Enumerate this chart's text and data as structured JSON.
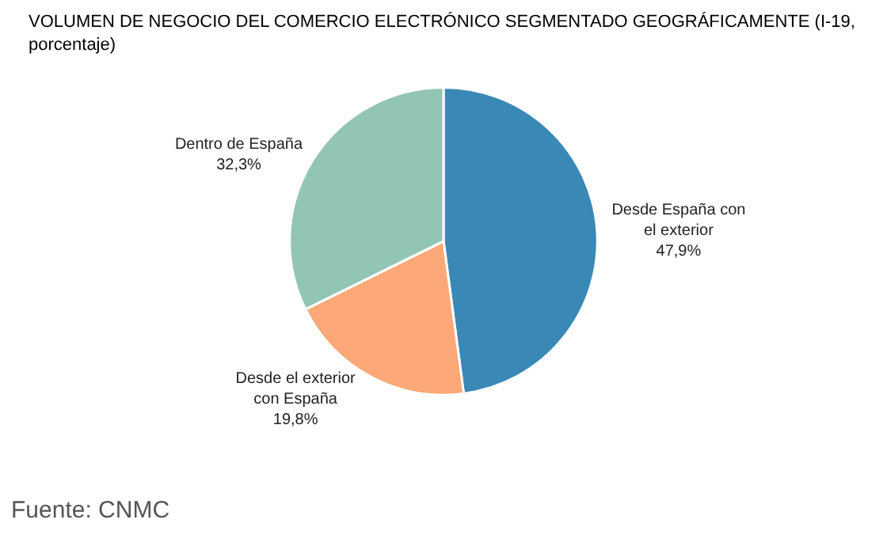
{
  "chart_data": {
    "type": "pie",
    "title": "VOLUMEN DE NEGOCIO DEL COMERCIO ELECTRÓNICO SEGMENTADO GEOGRÁFICAMENTE (I-19, porcentaje)",
    "categories": [
      "Desde España con el exterior",
      "Desde el exterior con España",
      "Dentro de España"
    ],
    "values": [
      47.9,
      19.8,
      32.3
    ],
    "value_labels": [
      "47,9%",
      "19,8%",
      "32,3%"
    ],
    "colors": [
      "#3a88b5",
      "#fca878",
      "#93c5b5"
    ],
    "legend": false,
    "annotations": [
      "Fuente: CNMC"
    ]
  }
}
